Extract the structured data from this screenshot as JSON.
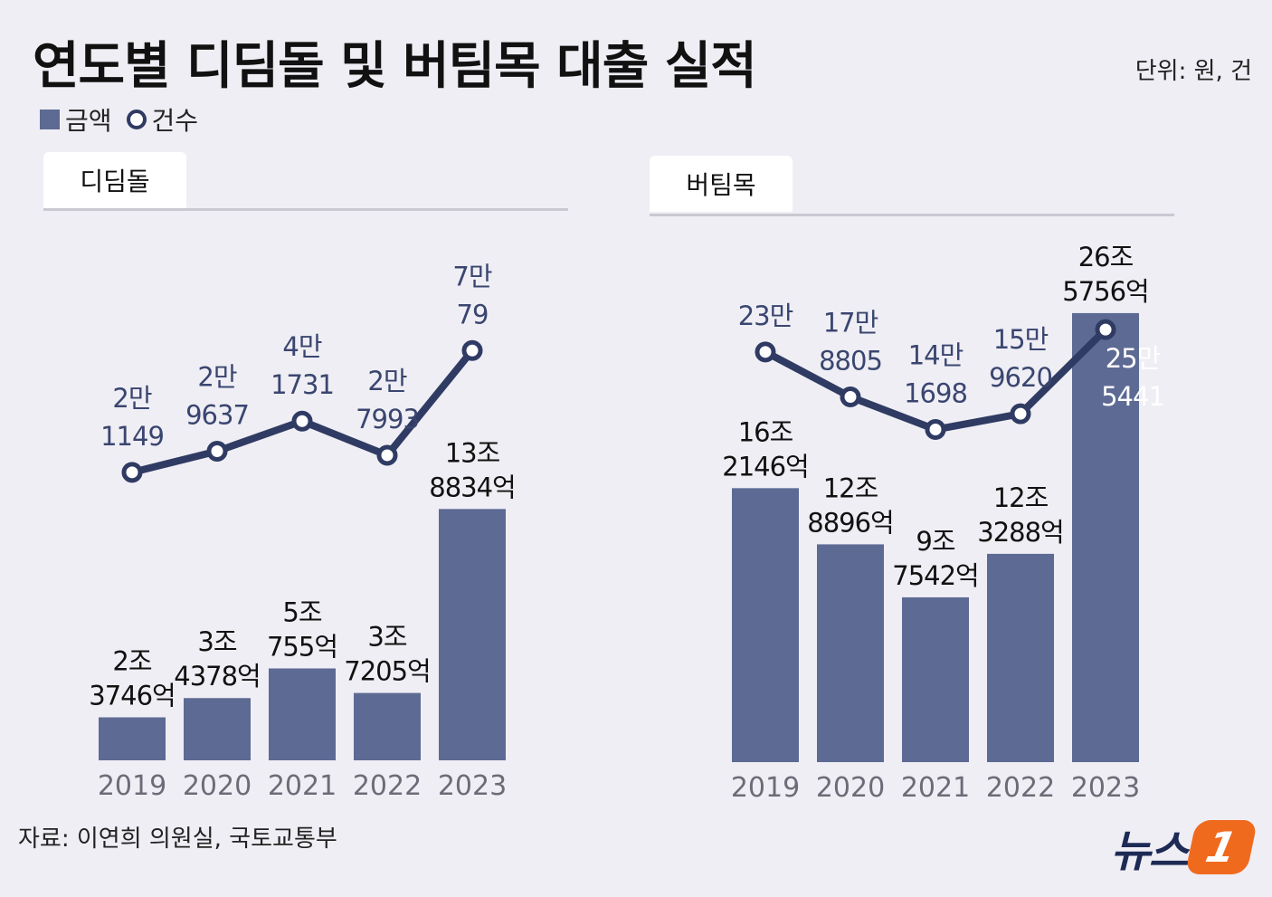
{
  "title": "연도별 디딤돌 및 버팀목 대출 실적",
  "unit_note": "단위: 원, 건",
  "legend": {
    "amount_label": "금액",
    "count_label": "건수"
  },
  "source": "자료: 이연희 의원실, 국토교통부",
  "logo": {
    "text": "뉴스",
    "mark": "1"
  },
  "colors": {
    "bar": "#5d6a94",
    "line": "#2f3b63",
    "background": "#efeef4"
  },
  "chart_data": [
    {
      "name": "디딤돌",
      "type": "bar",
      "categories": [
        "2019",
        "2020",
        "2021",
        "2022",
        "2023"
      ],
      "series": [
        {
          "name": "금액",
          "type": "bar",
          "values": [
            2.3746,
            3.4378,
            5.0755,
            3.7205,
            13.8834
          ],
          "labels": [
            [
              "2조",
              "3746억"
            ],
            [
              "3조",
              "4378억"
            ],
            [
              "5조",
              "755억"
            ],
            [
              "3조",
              "7205억"
            ],
            [
              "13조",
              "8834억"
            ]
          ]
        },
        {
          "name": "건수",
          "type": "line",
          "values": [
            21149,
            29637,
            41731,
            27993,
            70079
          ],
          "labels": [
            [
              "2만",
              "1149"
            ],
            [
              "2만",
              "9637"
            ],
            [
              "4만",
              "1731"
            ],
            [
              "2만",
              "7993"
            ],
            [
              "7만",
              "79"
            ]
          ]
        }
      ]
    },
    {
      "name": "버팀목",
      "type": "bar",
      "categories": [
        "2019",
        "2020",
        "2021",
        "2022",
        "2023"
      ],
      "series": [
        {
          "name": "금액",
          "type": "bar",
          "values": [
            16.2146,
            12.8896,
            9.7542,
            12.3288,
            26.5756
          ],
          "labels": [
            [
              "16조",
              "2146억"
            ],
            [
              "12조",
              "8896억"
            ],
            [
              "9조",
              "7542억"
            ],
            [
              "12조",
              "3288억"
            ],
            [
              "26조",
              "5756억"
            ]
          ]
        },
        {
          "name": "건수",
          "type": "line",
          "values": [
            230000,
            178805,
            141698,
            159620,
            255441
          ],
          "labels": [
            [
              "23만"
            ],
            [
              "17만",
              "8805"
            ],
            [
              "14만",
              "1698"
            ],
            [
              "15만",
              "9620"
            ],
            [
              "25만",
              "5441"
            ]
          ]
        }
      ]
    }
  ]
}
